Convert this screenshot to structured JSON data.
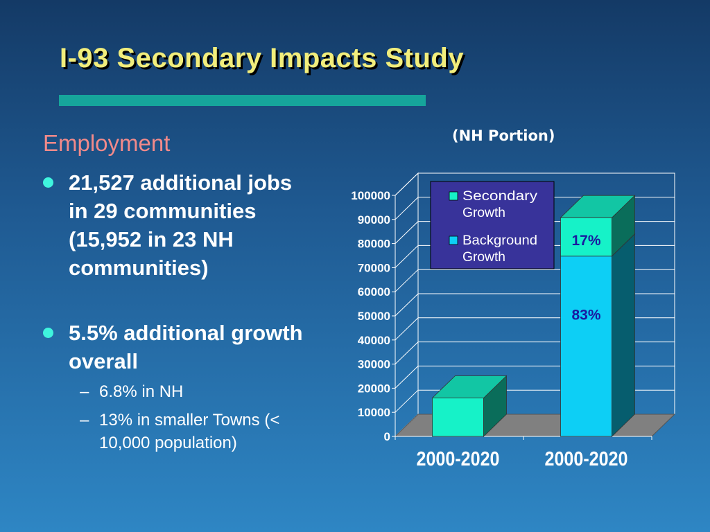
{
  "slide": {
    "title": "I-93 Secondary Impacts Study",
    "section": "Employment",
    "bullets": [
      {
        "text": "21,527 additional jobs in 29 communities (15,952 in 23 NH communities)"
      },
      {
        "text": "5.5% additional growth overall",
        "sub": [
          "6.8% in NH",
          "13% in smaller Towns (< 10,000 population)"
        ]
      }
    ],
    "sub_marker": "–"
  },
  "colors": {
    "title": "#f2ee7c",
    "rule": "#16a59b",
    "section": "#f28a8a",
    "bullet_dot": "#3ff5de",
    "secondary_front": "#16f2c8",
    "background_front": "#0dcff5",
    "legend_bg": "#38339a",
    "floor": "#808080"
  },
  "chart_data": {
    "type": "bar",
    "subtitle": "(NH Portion)",
    "stacked": true,
    "three_d": true,
    "categories": [
      "2000-2020",
      "2000-2020"
    ],
    "series": [
      {
        "name": "Background Growth",
        "values": [
          0,
          74800
        ],
        "color": "#0dcff5"
      },
      {
        "name": "Secondary Growth",
        "values": [
          15952,
          15952
        ],
        "color": "#16f2c8"
      }
    ],
    "segment_labels": [
      {
        "category_index": 1,
        "series_index": 0,
        "text": "83%"
      },
      {
        "category_index": 1,
        "series_index": 1,
        "text": "17%"
      }
    ],
    "ylim": [
      0,
      100000
    ],
    "yticks": [
      "0",
      "10000",
      "20000",
      "30000",
      "40000",
      "50000",
      "60000",
      "70000",
      "80000",
      "90000",
      "100000"
    ],
    "grid": true,
    "legend": {
      "position": "top-center",
      "order": [
        "Secondary Growth",
        "Background Growth"
      ]
    }
  }
}
